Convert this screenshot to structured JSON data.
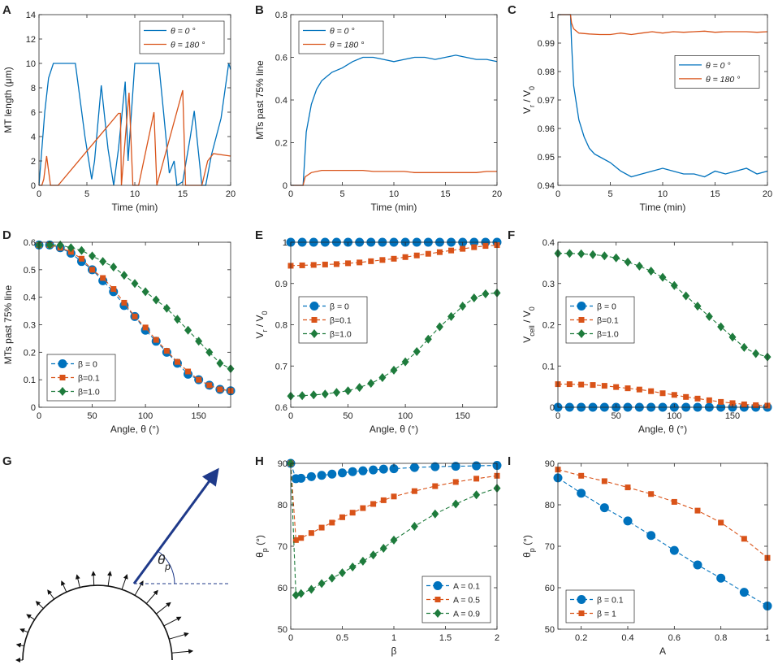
{
  "figure": {
    "panel_letters": [
      "A",
      "B",
      "C",
      "D",
      "E",
      "F",
      "G",
      "H",
      "I"
    ],
    "colors": {
      "blue": "#0072BD",
      "red": "#D95319",
      "green": "#1E7B3C",
      "arrow": "#1F3A8A",
      "axis": "#262626"
    }
  },
  "chart_data": [
    {
      "id": "A",
      "type": "line",
      "letter": "A",
      "xlabel": "Time (min)",
      "ylabel": "MT length (μm)",
      "xlim": [
        0,
        20
      ],
      "ylim": [
        0,
        14
      ],
      "xticks": [
        0,
        5,
        10,
        15,
        20
      ],
      "yticks": [
        0,
        2,
        4,
        6,
        8,
        10,
        12,
        14
      ],
      "legend": {
        "position": "top-right"
      },
      "series": [
        {
          "name": "θ = 0 °",
          "color": "blue",
          "x": [
            0,
            0.2,
            0.6,
            1.0,
            1.5,
            3.8,
            4.3,
            4.8,
            5.5,
            5.8,
            6.5,
            7.2,
            7.8,
            8.3,
            9.0,
            9.3,
            10.0,
            12.5,
            13.0,
            13.6,
            14.1,
            14.4,
            15.0,
            15.8,
            16.2,
            16.6,
            17.0,
            17.4,
            18.0,
            19.0,
            19.8,
            20
          ],
          "y": [
            0,
            2.0,
            6.0,
            8.8,
            10,
            10,
            7.0,
            4.0,
            0.5,
            2.0,
            8.2,
            3.0,
            0,
            3.0,
            8.5,
            2.0,
            10,
            10,
            6.0,
            1.0,
            2.0,
            0,
            0.3,
            4.0,
            6.1,
            3.0,
            0,
            0,
            2.5,
            5.5,
            10,
            9.5
          ]
        },
        {
          "name": "θ = 180 °",
          "color": "red",
          "x": [
            0,
            0.3,
            0.5,
            0.8,
            1.2,
            1.7,
            2.0,
            8.3,
            8.5,
            8.6,
            9.4,
            9.8,
            10.4,
            12.0,
            12.3,
            15.0,
            15.3,
            17.0,
            17.6,
            18.2,
            20
          ],
          "y": [
            0,
            0,
            0.5,
            2.4,
            0,
            0,
            0,
            5.9,
            5.9,
            0,
            7.6,
            0,
            0,
            6.0,
            0,
            7.8,
            0,
            0,
            2.0,
            2.6,
            2.4
          ]
        }
      ]
    },
    {
      "id": "B",
      "type": "line",
      "letter": "B",
      "xlabel": "Time (min)",
      "ylabel": "MTs past 75% line",
      "xlim": [
        0,
        20
      ],
      "ylim": [
        0,
        0.8
      ],
      "xticks": [
        0,
        5,
        10,
        15,
        20
      ],
      "yticks": [
        0,
        0.2,
        0.4,
        0.6,
        0.8
      ],
      "legend": {
        "position": "top-left"
      },
      "series": [
        {
          "name": "θ = 0 °",
          "color": "blue",
          "x": [
            0,
            1.2,
            1.3,
            1.5,
            2.0,
            2.5,
            3.0,
            3.5,
            4.0,
            5.0,
            6.0,
            7.0,
            8.0,
            9.0,
            10.0,
            11.0,
            12.0,
            13.0,
            14.0,
            15.0,
            16.0,
            17.0,
            18.0,
            19.0,
            20
          ],
          "y": [
            0,
            0,
            0.08,
            0.25,
            0.38,
            0.45,
            0.49,
            0.51,
            0.53,
            0.55,
            0.58,
            0.6,
            0.6,
            0.59,
            0.58,
            0.59,
            0.6,
            0.6,
            0.59,
            0.6,
            0.61,
            0.6,
            0.59,
            0.59,
            0.58
          ]
        },
        {
          "name": "θ = 180 °",
          "color": "red",
          "x": [
            0,
            1.2,
            1.4,
            2.0,
            3.0,
            4.0,
            5.0,
            6.0,
            7.0,
            8.0,
            9.0,
            10.0,
            11.0,
            12.0,
            13.0,
            14.0,
            15.0,
            16.0,
            17.0,
            18.0,
            19.0,
            20
          ],
          "y": [
            0,
            0,
            0.04,
            0.06,
            0.07,
            0.07,
            0.07,
            0.07,
            0.07,
            0.065,
            0.065,
            0.065,
            0.065,
            0.06,
            0.06,
            0.06,
            0.06,
            0.06,
            0.06,
            0.06,
            0.065,
            0.065
          ]
        }
      ]
    },
    {
      "id": "C",
      "type": "line",
      "letter": "C",
      "xlabel": "Time (min)",
      "ylabel": "V_r / V_0",
      "xlim": [
        0,
        20
      ],
      "ylim": [
        0.94,
        1.0
      ],
      "xticks": [
        0,
        5,
        10,
        15,
        20
      ],
      "yticks": [
        0.94,
        0.95,
        0.96,
        0.97,
        0.98,
        0.99,
        1
      ],
      "yticklabels": [
        "0.94",
        "0.95",
        "0.96",
        "0.97",
        "0.98",
        "0.99",
        "1"
      ],
      "legend": {
        "position": "middle-right"
      },
      "series": [
        {
          "name": "θ = 0 °",
          "color": "blue",
          "x": [
            0,
            1.2,
            1.3,
            1.5,
            2.0,
            2.5,
            3.0,
            3.5,
            4.0,
            5.0,
            6.0,
            7.0,
            8.0,
            9.0,
            10.0,
            11.0,
            12.0,
            13.0,
            14.0,
            15.0,
            16.0,
            17.0,
            18.0,
            19.0,
            20
          ],
          "y": [
            1.0,
            1.0,
            0.99,
            0.975,
            0.963,
            0.957,
            0.953,
            0.951,
            0.95,
            0.948,
            0.945,
            0.943,
            0.944,
            0.945,
            0.946,
            0.945,
            0.944,
            0.944,
            0.943,
            0.945,
            0.944,
            0.945,
            0.946,
            0.944,
            0.945
          ]
        },
        {
          "name": "θ = 180 °",
          "color": "red",
          "x": [
            0,
            1.2,
            1.3,
            1.5,
            2.0,
            3.0,
            4.0,
            5.0,
            6.0,
            7.0,
            8.0,
            9.0,
            10.0,
            11.0,
            12.0,
            13.0,
            14.0,
            15.0,
            16.0,
            17.0,
            18.0,
            19.0,
            20
          ],
          "y": [
            1.0,
            1.0,
            0.997,
            0.995,
            0.9935,
            0.9932,
            0.993,
            0.993,
            0.9935,
            0.993,
            0.9935,
            0.994,
            0.9935,
            0.994,
            0.9938,
            0.994,
            0.9942,
            0.9938,
            0.994,
            0.994,
            0.994,
            0.9938,
            0.994
          ]
        }
      ]
    },
    {
      "id": "D",
      "type": "line",
      "letter": "D",
      "xlabel": "Angle, θ (°)",
      "ylabel": "MTs past 75% line",
      "xlim": [
        0,
        180
      ],
      "ylim": [
        0,
        0.6
      ],
      "xticks": [
        0,
        50,
        100,
        150
      ],
      "yticks": [
        0,
        0.1,
        0.2,
        0.3,
        0.4,
        0.5,
        0.6
      ],
      "legend": {
        "position": "bottom-left"
      },
      "x": [
        0,
        10,
        20,
        30,
        40,
        50,
        60,
        70,
        80,
        90,
        100,
        110,
        120,
        130,
        140,
        150,
        160,
        170,
        180
      ],
      "series": [
        {
          "name": "β = 0",
          "color": "blue",
          "marker": "circle",
          "values": [
            0.59,
            0.59,
            0.58,
            0.56,
            0.53,
            0.5,
            0.46,
            0.42,
            0.37,
            0.33,
            0.28,
            0.24,
            0.2,
            0.16,
            0.12,
            0.1,
            0.08,
            0.065,
            0.06
          ]
        },
        {
          "name": "β=0.1",
          "color": "red",
          "marker": "square",
          "values": [
            0.59,
            0.59,
            0.58,
            0.565,
            0.54,
            0.5,
            0.47,
            0.43,
            0.38,
            0.33,
            0.29,
            0.245,
            0.205,
            0.165,
            0.13,
            0.1,
            0.08,
            0.065,
            0.06
          ]
        },
        {
          "name": "β=1.0",
          "color": "green",
          "marker": "diamond",
          "values": [
            0.59,
            0.59,
            0.59,
            0.58,
            0.57,
            0.55,
            0.53,
            0.51,
            0.48,
            0.45,
            0.42,
            0.39,
            0.36,
            0.32,
            0.28,
            0.24,
            0.2,
            0.16,
            0.14
          ]
        }
      ]
    },
    {
      "id": "E",
      "type": "line",
      "letter": "E",
      "xlabel": "Angle, θ (°)",
      "ylabel": "V_r / V_0",
      "xlim": [
        0,
        180
      ],
      "ylim": [
        0.6,
        1.0
      ],
      "xticks": [
        0,
        50,
        100,
        150
      ],
      "yticks": [
        0.6,
        0.7,
        0.8,
        0.9,
        1
      ],
      "yticklabels": [
        "0.6",
        "0.7",
        "0.8",
        "0.9",
        "1"
      ],
      "legend": {
        "position": "middle-left"
      },
      "x": [
        0,
        10,
        20,
        30,
        40,
        50,
        60,
        70,
        80,
        90,
        100,
        110,
        120,
        130,
        140,
        150,
        160,
        170,
        180
      ],
      "series": [
        {
          "name": "β = 0",
          "color": "blue",
          "marker": "circle",
          "values": [
            1,
            1,
            1,
            1,
            1,
            1,
            1,
            1,
            1,
            1,
            1,
            1,
            1,
            1,
            1,
            1,
            1,
            1,
            1
          ]
        },
        {
          "name": "β=0.1",
          "color": "red",
          "marker": "square",
          "values": [
            0.943,
            0.944,
            0.945,
            0.946,
            0.947,
            0.949,
            0.951,
            0.954,
            0.957,
            0.96,
            0.964,
            0.968,
            0.972,
            0.976,
            0.98,
            0.984,
            0.988,
            0.991,
            0.993
          ]
        },
        {
          "name": "β=1.0",
          "color": "green",
          "marker": "diamond",
          "values": [
            0.627,
            0.628,
            0.63,
            0.632,
            0.636,
            0.64,
            0.648,
            0.658,
            0.672,
            0.69,
            0.71,
            0.735,
            0.765,
            0.795,
            0.82,
            0.845,
            0.865,
            0.875,
            0.877
          ]
        }
      ]
    },
    {
      "id": "F",
      "type": "line",
      "letter": "F",
      "xlabel": "Angle, θ (°)",
      "ylabel": "V_cell / V_0",
      "xlim": [
        0,
        180
      ],
      "ylim": [
        0,
        0.4
      ],
      "xticks": [
        0,
        50,
        100,
        150
      ],
      "yticks": [
        0,
        0.1,
        0.2,
        0.3,
        0.4
      ],
      "legend": {
        "position": "middle-left"
      },
      "x": [
        0,
        10,
        20,
        30,
        40,
        50,
        60,
        70,
        80,
        90,
        100,
        110,
        120,
        130,
        140,
        150,
        160,
        170,
        180
      ],
      "series": [
        {
          "name": "β = 0",
          "color": "blue",
          "marker": "circle",
          "values": [
            0,
            0,
            0,
            0,
            0,
            0,
            0,
            0,
            0,
            0,
            0,
            0,
            0,
            0,
            0,
            0,
            0,
            0,
            0
          ]
        },
        {
          "name": "β=0.1",
          "color": "red",
          "marker": "square",
          "values": [
            0.056,
            0.056,
            0.055,
            0.054,
            0.052,
            0.049,
            0.046,
            0.043,
            0.039,
            0.034,
            0.03,
            0.025,
            0.021,
            0.017,
            0.013,
            0.01,
            0.007,
            0.005,
            0.004
          ]
        },
        {
          "name": "β=1.0",
          "color": "green",
          "marker": "diamond",
          "values": [
            0.373,
            0.373,
            0.372,
            0.37,
            0.367,
            0.362,
            0.352,
            0.342,
            0.33,
            0.315,
            0.295,
            0.27,
            0.245,
            0.22,
            0.195,
            0.17,
            0.145,
            0.13,
            0.122
          ]
        }
      ]
    },
    {
      "id": "H",
      "type": "line",
      "letter": "H",
      "xlabel": "β",
      "ylabel": "θ_p (°)",
      "xlim": [
        0,
        2
      ],
      "ylim": [
        50,
        90
      ],
      "xticks": [
        0,
        0.5,
        1,
        1.5,
        2
      ],
      "yticks": [
        50,
        60,
        70,
        80,
        90
      ],
      "xticklabels": [
        "0",
        "0.5",
        "1",
        "1.5",
        "2"
      ],
      "legend": {
        "position": "bottom-right"
      },
      "series": [
        {
          "name": "A = 0.1",
          "color": "blue",
          "marker": "circle",
          "x": [
            0,
            0.05,
            0.1,
            0.2,
            0.3,
            0.4,
            0.5,
            0.6,
            0.7,
            0.8,
            0.9,
            1.0,
            1.2,
            1.4,
            1.6,
            1.8,
            2.0
          ],
          "values": [
            90,
            86.3,
            86.4,
            86.8,
            87.1,
            87.4,
            87.7,
            88.0,
            88.2,
            88.4,
            88.6,
            88.7,
            89.0,
            89.2,
            89.3,
            89.4,
            89.5
          ]
        },
        {
          "name": "A = 0.5",
          "color": "red",
          "marker": "square",
          "x": [
            0,
            0.05,
            0.1,
            0.2,
            0.3,
            0.4,
            0.5,
            0.6,
            0.7,
            0.8,
            0.9,
            1.0,
            1.2,
            1.4,
            1.6,
            1.8,
            2.0
          ],
          "values": [
            90,
            71.5,
            72.0,
            73.2,
            74.5,
            75.7,
            77.0,
            78.1,
            79.2,
            80.2,
            81.1,
            82.0,
            83.3,
            84.5,
            85.5,
            86.3,
            87.0
          ]
        },
        {
          "name": "A = 0.9",
          "color": "green",
          "marker": "diamond",
          "x": [
            0,
            0.05,
            0.1,
            0.2,
            0.3,
            0.4,
            0.5,
            0.6,
            0.7,
            0.8,
            0.9,
            1.0,
            1.2,
            1.4,
            1.6,
            1.8,
            2.0
          ],
          "values": [
            90,
            58.2,
            58.6,
            59.6,
            61.0,
            62.3,
            63.6,
            65.0,
            66.4,
            67.9,
            69.5,
            71.5,
            74.8,
            77.8,
            80.2,
            82.4,
            84.0
          ]
        }
      ]
    },
    {
      "id": "I",
      "type": "line",
      "letter": "I",
      "xlabel": "A",
      "ylabel": "θ_p (°)",
      "xlim": [
        0.1,
        1.0
      ],
      "ylim": [
        50,
        90
      ],
      "xticks": [
        0.2,
        0.4,
        0.6,
        0.8,
        1
      ],
      "yticks": [
        50,
        60,
        70,
        80,
        90
      ],
      "xticklabels": [
        "0.2",
        "0.4",
        "0.6",
        "0.8",
        "1"
      ],
      "legend": {
        "position": "bottom-left"
      },
      "x": [
        0.1,
        0.2,
        0.3,
        0.4,
        0.5,
        0.6,
        0.7,
        0.8,
        0.9,
        1.0
      ],
      "series": [
        {
          "name": "β = 0.1",
          "color": "blue",
          "marker": "circle",
          "values": [
            86.5,
            82.8,
            79.3,
            76.1,
            72.6,
            69.0,
            65.5,
            62.3,
            58.9,
            55.6
          ]
        },
        {
          "name": "β = 1",
          "color": "red",
          "marker": "square",
          "values": [
            88.5,
            87.0,
            85.7,
            84.2,
            82.6,
            80.7,
            78.6,
            75.7,
            71.8,
            67.2
          ]
        }
      ]
    }
  ],
  "schematic_G": {
    "letter": "G",
    "label_base": "θ",
    "label_sub": "p"
  }
}
